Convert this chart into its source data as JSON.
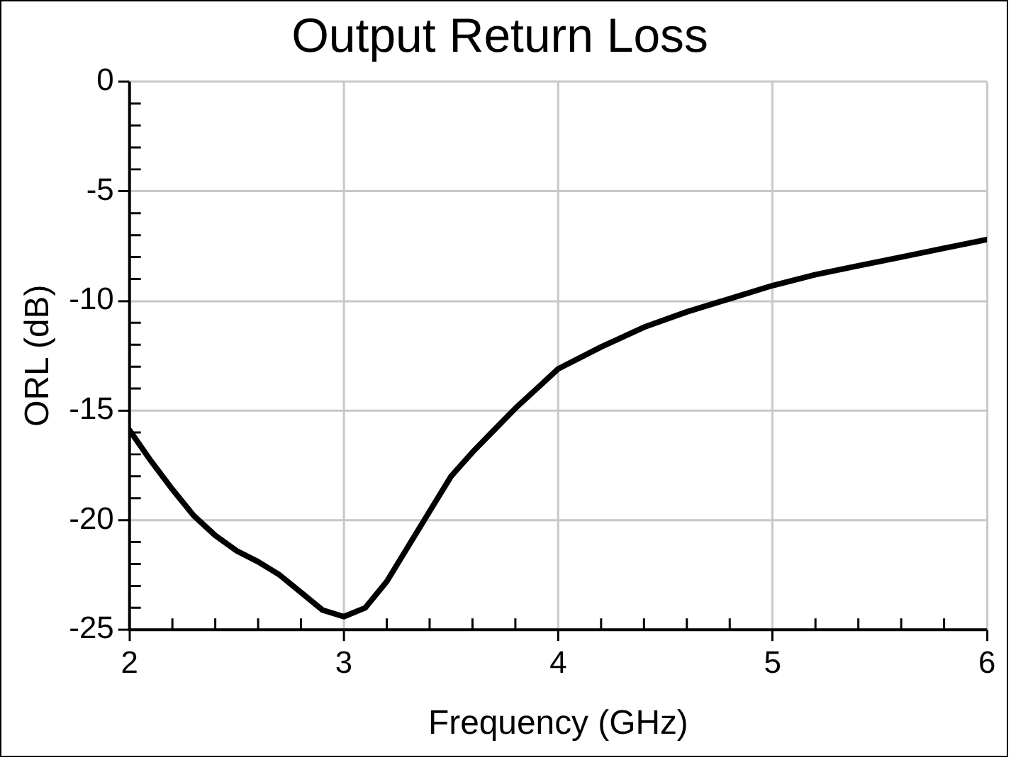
{
  "chart_data": {
    "type": "line",
    "title": "Output Return Loss",
    "xlabel": "Frequency (GHz)",
    "ylabel": "ORL (dB)",
    "x": [
      2,
      2.1,
      2.2,
      2.3,
      2.4,
      2.5,
      2.6,
      2.7,
      2.8,
      2.9,
      3,
      3.1,
      3.2,
      3.3,
      3.4,
      3.5,
      3.6,
      3.7,
      3.8,
      3.9,
      4,
      4.2,
      4.4,
      4.6,
      4.8,
      5,
      5.2,
      5.4,
      5.6,
      5.8,
      6
    ],
    "series": [
      {
        "color": "#000000",
        "values": [
          -15.9,
          -17.3,
          -18.6,
          -19.8,
          -20.7,
          -21.4,
          -21.9,
          -22.5,
          -23.3,
          -24.1,
          -24.4,
          -24.0,
          -22.8,
          -21.2,
          -19.6,
          -18.0,
          -16.9,
          -15.9,
          -14.9,
          -14.0,
          -13.1,
          -12.1,
          -11.2,
          -10.5,
          -9.9,
          -9.3,
          -8.8,
          -8.4,
          -8.0,
          -7.6,
          -7.2
        ]
      }
    ],
    "xlim": [
      2,
      6
    ],
    "xticks": [
      2,
      3,
      4,
      5,
      6
    ],
    "ylim": [
      -25,
      0
    ],
    "yticks": [
      -25,
      -20,
      -15,
      -10,
      -5,
      0
    ],
    "grid": true,
    "legend": false,
    "marker": "none",
    "line_style": "solid"
  }
}
